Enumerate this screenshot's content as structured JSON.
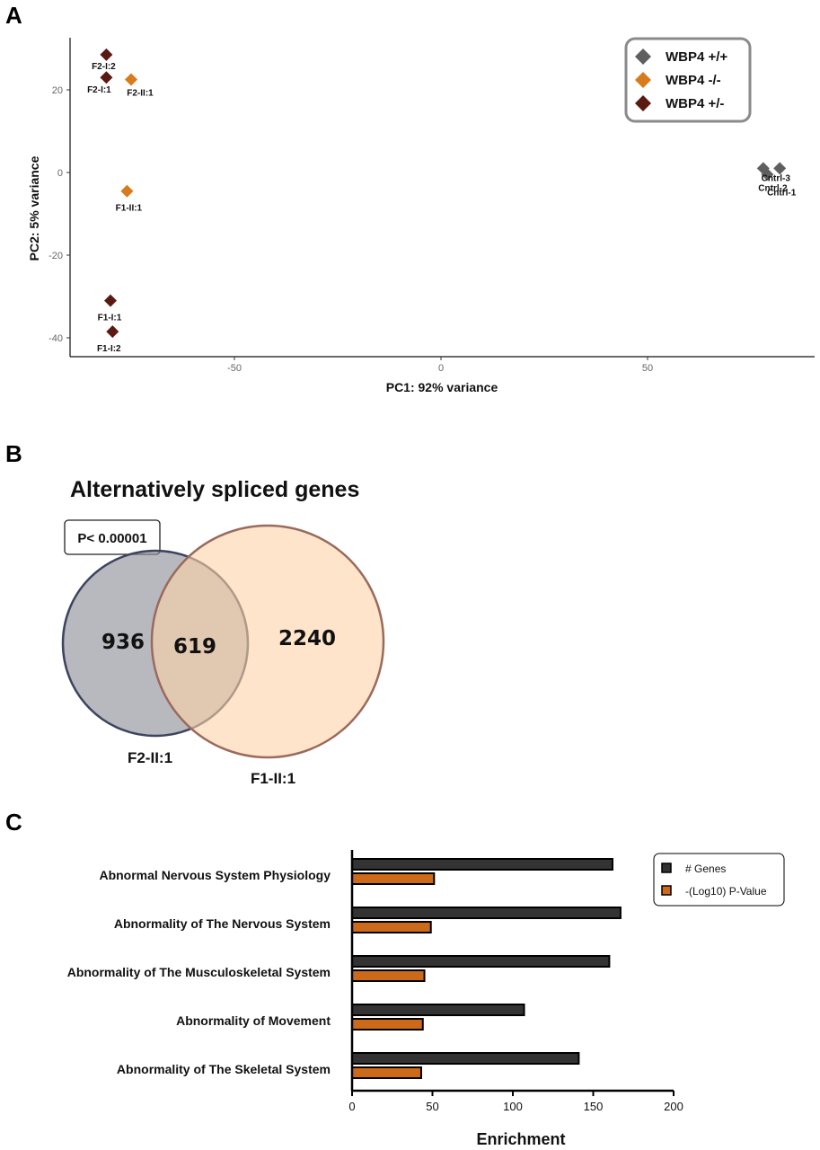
{
  "panels": {
    "a": "A",
    "b": "B",
    "c": "C"
  },
  "chart_data": [
    {
      "type": "scatter",
      "panel": "A",
      "xlabel": "PC1: 92% variance",
      "ylabel": "PC2: 5% variance",
      "xlim": [
        -90,
        90
      ],
      "ylim": [
        -45,
        32
      ],
      "xticks": [
        -50,
        0,
        50
      ],
      "yticks": [
        20,
        0,
        -20,
        -40
      ],
      "grid": false,
      "legend_position": "top-right",
      "legend": [
        {
          "label": "WBP4 +/+",
          "color": "#5f5f5f"
        },
        {
          "label": "WBP4 -/-",
          "color": "#d97a1b"
        },
        {
          "label": "WBP4 +/-",
          "color": "#5a1a12"
        }
      ],
      "series": [
        {
          "group": "WBP4 +/-",
          "color": "#5a1a12",
          "points": [
            {
              "label": "F2-I:2",
              "x": -81,
              "y": 28.5
            },
            {
              "label": "F2-I:1",
              "x": -81,
              "y": 23
            },
            {
              "label": "F1-I:1",
              "x": -80,
              "y": -31
            },
            {
              "label": "F1-I:2",
              "x": -79.5,
              "y": -38.5
            }
          ]
        },
        {
          "group": "WBP4 -/-",
          "color": "#d97a1b",
          "points": [
            {
              "label": "F2-II:1",
              "x": -75,
              "y": 22.5
            },
            {
              "label": "F1-II:1",
              "x": -76,
              "y": -4.5
            }
          ]
        },
        {
          "group": "WBP4 +/+",
          "color": "#5f5f5f",
          "points": [
            {
              "label": "Cntrl-3",
              "x": 78,
              "y": 1
            },
            {
              "label": "Cntrl-2",
              "x": 79,
              "y": -0.5
            },
            {
              "label": "Cntrl-1",
              "x": 82,
              "y": 1
            }
          ]
        }
      ]
    },
    {
      "type": "venn",
      "panel": "B",
      "title": "Alternatively spliced genes",
      "annotation": "P< 0.00001",
      "sets": [
        {
          "name": "F2-II:1",
          "only": "936",
          "color": "#a9a9b1",
          "stroke": "#3d4460"
        },
        {
          "name": "F1-II:1",
          "only": "2240",
          "color": "#fbd6b0",
          "stroke": "#9a6a5c"
        }
      ],
      "intersection": "619"
    },
    {
      "type": "bar",
      "orientation": "horizontal",
      "panel": "C",
      "xlabel": "Enrichment",
      "xlim": [
        0,
        200
      ],
      "xticks": [
        0,
        50,
        100,
        150,
        200
      ],
      "legend_position": "top-right",
      "categories": [
        "Abnormal Nervous System Physiology",
        "Abnormality of The Nervous System",
        "Abnormality of The Musculoskeletal System",
        "Abnormality of Movement",
        "Abnormality of The Skeletal System"
      ],
      "series": [
        {
          "name": "# Genes",
          "color": "#333333",
          "values": [
            162,
            167,
            160,
            107,
            141
          ]
        },
        {
          "name": "-(Log10) P-Value",
          "color": "#cc6a1a",
          "values": [
            51,
            49,
            45,
            44,
            43
          ]
        }
      ]
    }
  ]
}
